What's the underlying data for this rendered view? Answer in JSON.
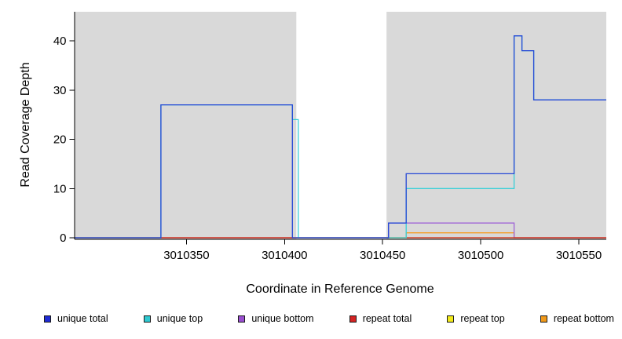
{
  "chart_data": {
    "type": "line",
    "title": "",
    "xlabel": "Coordinate in Reference Genome",
    "ylabel": "Read Coverage Depth",
    "xlim": [
      3010293,
      3010564
    ],
    "ylim": [
      0,
      45.9
    ],
    "x_ticks": [
      3010350,
      3010400,
      3010450,
      3010500,
      3010550
    ],
    "y_ticks": [
      0,
      10,
      20,
      30,
      40
    ],
    "grid": false,
    "legend_position": "bottom",
    "background_color": "#ffffff",
    "shaded_region_color": "#d9d9d9",
    "background_regions": [
      {
        "x0": 3010293,
        "x1": 3010406
      },
      {
        "x0": 3010452,
        "x1": 3010564
      }
    ],
    "series": [
      {
        "name": "repeat top",
        "color": "#f2e615",
        "points": [
          [
            3010293,
            0
          ],
          [
            3010564,
            0
          ]
        ]
      },
      {
        "name": "repeat bottom",
        "color": "#f59d25",
        "points": [
          [
            3010293,
            0
          ],
          [
            3010462,
            0
          ],
          [
            3010462,
            1
          ],
          [
            3010517,
            1
          ],
          [
            3010517,
            0
          ],
          [
            3010564,
            0
          ]
        ]
      },
      {
        "name": "unique bottom",
        "color": "#9e63d6",
        "points": [
          [
            3010293,
            0
          ],
          [
            3010453,
            0
          ],
          [
            3010453,
            3
          ],
          [
            3010517,
            3
          ],
          [
            3010517,
            0
          ],
          [
            3010564,
            0
          ]
        ]
      },
      {
        "name": "repeat total",
        "color": "#cc2222",
        "points": [
          [
            3010293,
            0
          ],
          [
            3010564,
            0
          ]
        ]
      },
      {
        "name": "unique top",
        "color": "#38cfd8",
        "points": [
          [
            3010293,
            0
          ],
          [
            3010337,
            0
          ],
          [
            3010337,
            27
          ],
          [
            3010404,
            27
          ],
          [
            3010404,
            24
          ],
          [
            3010407,
            24
          ],
          [
            3010407,
            0
          ],
          [
            3010462,
            0
          ],
          [
            3010462,
            10
          ],
          [
            3010517,
            10
          ],
          [
            3010517,
            41
          ],
          [
            3010521,
            41
          ],
          [
            3010521,
            38
          ],
          [
            3010527,
            38
          ],
          [
            3010527,
            28
          ],
          [
            3010564,
            28
          ]
        ]
      },
      {
        "name": "unique total",
        "color": "#2447d6",
        "points": [
          [
            3010293,
            0
          ],
          [
            3010337,
            0
          ],
          [
            3010337,
            27
          ],
          [
            3010404,
            27
          ],
          [
            3010404,
            0
          ],
          [
            3010453,
            0
          ],
          [
            3010453,
            3
          ],
          [
            3010462,
            3
          ],
          [
            3010462,
            13
          ],
          [
            3010517,
            13
          ],
          [
            3010517,
            41
          ],
          [
            3010521,
            41
          ],
          [
            3010521,
            38
          ],
          [
            3010527,
            38
          ],
          [
            3010527,
            28
          ],
          [
            3010564,
            28
          ]
        ]
      }
    ],
    "legend": [
      {
        "label": "unique total",
        "color": "#1f2bd4"
      },
      {
        "label": "unique top",
        "color": "#2fc9d1"
      },
      {
        "label": "unique bottom",
        "color": "#9a4fd0"
      },
      {
        "label": "repeat total",
        "color": "#d42424"
      },
      {
        "label": "repeat top",
        "color": "#f2ea1a"
      },
      {
        "label": "repeat bottom",
        "color": "#f0991a"
      }
    ]
  }
}
